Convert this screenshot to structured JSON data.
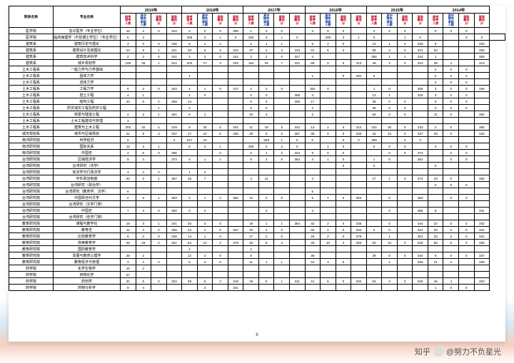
{
  "headers": {
    "dept": "院系名称",
    "major": "专业名称"
  },
  "years": [
    "2019年",
    "2018年",
    "2017年",
    "2016年",
    "2015年",
    "2014年"
  ],
  "subcols": [
    "统考报考人数",
    "其中推免录取人数",
    "录取最低分",
    "录取最低分"
  ],
  "subcol_colors": [
    "#c00020",
    "#003399",
    "#c00020",
    "#c00020"
  ],
  "page": "8",
  "watermark": "@努力不负星光",
  "rows": [
    {
      "dept": "医学院",
      "major": "急诊医学（专业学位）",
      "d": [
        19,
        2,
        0,
        344,
        4,
        0,
        0,
        356,
        1,
        0,
        0,
        "",
        3,
        0,
        0,
        "",
        4,
        0,
        0,
        "",
        0,
        0,
        0,
        ""
      ]
    },
    {
      "dept": "医学院",
      "major": "临床病理学（不授博士学位）（专业学位）",
      "d": [
        5,
        2,
        "",
        "",
        338,
        3,
        1,
        0,
        326,
        3,
        1,
        0,
        "",
        345,
        3,
        1,
        0,
        "",
        1,
        0,
        "",
        "",
        0,
        0,
        ""
      ]
    },
    {
      "dept": "建筑系",
      "major": "建筑历史与理论",
      "d": [
        3,
        0,
        0,
        336,
        5,
        1,
        1,
        "",
        1,
        1,
        1,
        "",
        5,
        2,
        0,
        "",
        10,
        1,
        0,
        339,
        9,
        "",
        "",
        325
      ]
    },
    {
      "dept": "建筑系",
      "major": "建筑设计及其理论",
      "d": [
        24,
        6,
        1,
        311,
        20,
        5,
        4,
        322,
        37,
        4,
        4,
        343,
        31,
        6,
        2,
        "",
        56,
        4,
        0,
        321,
        63,
        "",
        "",
        330
      ]
    },
    {
      "dept": "建筑系",
      "major": "建筑技术科学",
      "d": [
        2,
        2,
        0,
        341,
        1,
        2,
        0,
        341,
        2,
        2,
        0,
        327,
        4,
        "",
        "",
        "",
        355,
        1,
        1,
        334,
        1,
        "",
        "",
        359
      ]
    },
    {
      "dept": "建筑系",
      "major": "城乡规划学",
      "d": [
        109,
        28,
        1,
        312,
        202,
        27,
        3,
        333,
        154,
        25,
        7,
        321,
        88,
        0,
        0,
        313,
        49,
        3,
        0,
        310,
        39,
        4,
        "",
        313
      ]
    },
    {
      "dept": "土木工程系",
      "major": "一般力学与力学基础",
      "d": [
        "",
        "",
        "",
        "",
        "",
        "",
        "",
        "",
        "",
        "",
        "",
        "",
        "",
        "",
        "",
        "",
        "",
        "",
        "",
        "",
        2,
        0,
        0,
        ""
      ]
    },
    {
      "dept": "土木工程系",
      "major": "固体力学",
      "d": [
        "",
        "",
        "",
        "",
        1,
        "",
        "",
        "",
        "",
        "",
        "",
        "",
        1,
        "",
        0,
        391,
        0,
        "",
        "",
        "",
        0,
        0,
        0,
        ""
      ]
    },
    {
      "dept": "土木工程系",
      "major": "流体力学",
      "d": [
        "",
        "",
        "",
        "",
        "",
        "",
        "",
        "",
        "",
        "",
        "",
        "",
        "",
        "",
        "",
        "",
        "",
        "",
        "",
        "",
        2,
        0,
        0,
        ""
      ]
    },
    {
      "dept": "土木工程系",
      "major": "工程力学",
      "d": [
        6,
        3,
        0,
        343,
        4,
        1,
        0,
        317,
        2,
        2,
        0,
        "",
        352,
        0,
        "",
        "",
        1,
        0,
        "",
        365,
        3,
        0,
        0,
        346
      ]
    },
    {
      "dept": "土木工程系",
      "major": "岩土工程",
      "d": [
        4,
        1,
        "",
        "",
        4,
        0,
        "",
        "",
        0,
        0,
        "",
        385,
        4,
        "",
        "",
        "",
        13,
        1,
        "",
        326,
        0,
        0,
        0,
        ""
      ]
    },
    {
      "dept": "土木工程系",
      "major": "结构工程",
      "d": [
        20,
        0,
        2,
        359,
        14,
        "",
        "",
        "",
        0,
        3,
        "",
        365,
        17,
        "",
        "",
        "",
        36,
        0,
        0,
        "",
        0,
        0,
        0,
        ""
      ]
    },
    {
      "dept": "土木工程系",
      "major": "防灾减灾工程及防护工程",
      "d": [
        "",
        "",
        1,
        "",
        2,
        "",
        "",
        "",
        0,
        0,
        "",
        "",
        4,
        "",
        "",
        "",
        36,
        0,
        0,
        "",
        0,
        0,
        0,
        ""
      ]
    },
    {
      "dept": "土木工程系",
      "major": "桥梁与隧道工程",
      "d": [
        2,
        2,
        1,
        361,
        6,
        1,
        "",
        "",
        10,
        3,
        "",
        "",
        3,
        "",
        "",
        "",
        64,
        0,
        0,
        "",
        11,
        0,
        "",
        352
      ]
    },
    {
      "dept": "土木工程系",
      "major": "土木工程建造与管理",
      "d": [
        3,
        "",
        "",
        "",
        "",
        "",
        "",
        "",
        "",
        "",
        "",
        "",
        "",
        "",
        "",
        "",
        "",
        "",
        "",
        "",
        "",
        "",
        "",
        ""
      ]
    },
    {
      "dept": "土木工程系",
      "major": "建筑与土木工程",
      "d": [
        203,
        32,
        4,
        319,
        8,
        35,
        5,
        301,
        11,
        19,
        5,
        342,
        13,
        2,
        0,
        314,
        232,
        26,
        0,
        333,
        2,
        0,
        "",
        355
      ]
    },
    {
      "dept": "城市规划系",
      "major": "城市与区域规划",
      "d": [
        21,
        9,
        3,
        337,
        17,
        10,
        5,
        330,
        29,
        0,
        5,
        357,
        38,
        0,
        0,
        330,
        32,
        10,
        0,
        327,
        29,
        0,
        "",
        333
      ]
    },
    {
      "dept": "南洋研究院",
      "major": "世界经济",
      "d": [
        6,
        "",
        "",
        4,
        317,
        10,
        "",
        "",
        "",
        259,
        1,
        5,
        0,
        "",
        0,
        0,
        350,
        "",
        0,
        0,
        "",
        "",
        "",
        ""
      ]
    },
    {
      "dept": "南洋研究院",
      "major": "国际关系",
      "d": [
        12,
        3,
        1,
        "",
        5,
        2,
        1,
        "",
        380,
        2,
        2,
        0,
        "",
        1,
        0,
        "",
        6,
        0,
        0,
        "",
        3,
        0,
        0,
        ""
      ]
    },
    {
      "dept": "南洋研究院",
      "major": "中国史",
      "d": [
        4,
        6,
        0,
        386,
        "",
        "",
        0,
        "",
        5,
        1,
        2,
        342,
        9,
        0,
        0,
        "",
        "",
        0,
        0,
        373,
        "",
        0,
        0,
        ""
      ]
    },
    {
      "dept": "台湾研究院",
      "major": "区域经济学",
      "d": [
        9,
        4,
        "",
        373,
        4,
        1,
        1,
        "",
        8,
        3,
        0,
        362,
        4,
        1,
        0,
        "",
        1,
        0,
        "",
        362,
        "",
        0,
        0,
        ""
      ]
    },
    {
      "dept": "台湾研究院",
      "major": "台湾研究（法学）",
      "d": [
        "",
        "",
        "",
        "",
        "",
        "",
        "",
        "",
        "",
        "",
        "",
        "",
        "",
        "",
        0,
        "",
        0,
        "",
        "",
        "",
        0,
        "",
        "",
        ""
      ]
    },
    {
      "dept": "台湾研究院",
      "major": "宪法学与行政法学",
      "d": [
        3,
        2,
        0,
        "",
        1,
        2,
        "",
        "",
        "",
        "",
        "",
        "",
        "",
        "",
        "",
        "",
        "",
        "",
        "",
        "",
        "",
        "",
        "",
        ""
      ]
    },
    {
      "dept": "台湾研究院",
      "major": "中外政治制度",
      "d": [
        20,
        0,
        1,
        367,
        15,
        7,
        "",
        "",
        4,
        11,
        "",
        "",
        4,
        "",
        "",
        "",
        17,
        1,
        0,
        374,
        23,
        0,
        "",
        352
      ]
    },
    {
      "dept": "台湾研究院",
      "major": "台湾研究（政治学）",
      "d": [
        "",
        "",
        "",
        "",
        "",
        "",
        "",
        "",
        "",
        "",
        "",
        "",
        "",
        "",
        "",
        "",
        "",
        "",
        "",
        "",
        0,
        0,
        0,
        ""
      ]
    },
    {
      "dept": "台湾研究院",
      "major": "台湾研究（教育学、法学）",
      "d": [
        6,
        "",
        "",
        "",
        "",
        "",
        "",
        "",
        "",
        "",
        "",
        "",
        5,
        "",
        "",
        "",
        "",
        "",
        "",
        "",
        "",
        "",
        "",
        ""
      ]
    },
    {
      "dept": "台湾研究院",
      "major": "中国现当代文学",
      "d": [
        2,
        0,
        1,
        383,
        2,
        1,
        2,
        364,
        12,
        2,
        0,
        "",
        5,
        1,
        0,
        353,
        "",
        0,
        "",
        363,
        "",
        0,
        0,
        ""
      ]
    },
    {
      "dept": "台湾研究院",
      "major": "台湾研究（文学门类）",
      "d": [
        "",
        "",
        "",
        "",
        "",
        "",
        "",
        "",
        "",
        "",
        "",
        "",
        "",
        "",
        "",
        "",
        "",
        "",
        "",
        "",
        "",
        "",
        "",
        ""
      ]
    },
    {
      "dept": "台湾研究院",
      "major": "中国史",
      "d": [
        7,
        4,
        0,
        350,
        0,
        4,
        "",
        "",
        "",
        2,
        "",
        "",
        4,
        "",
        "",
        "",
        "",
        0,
        "",
        356,
        8,
        "",
        "",
        341
      ]
    },
    {
      "dept": "台湾研究院",
      "major": "台湾研究（史学门类）",
      "d": [
        "",
        "",
        "",
        "",
        "",
        "",
        "",
        "",
        "",
        "",
        "",
        "",
        "",
        "",
        "",
        "",
        "",
        "",
        "",
        "",
        "",
        "",
        "",
        ""
      ]
    },
    {
      "dept": "教育研究院",
      "major": "课程与教学论",
      "d": [
        18,
        3,
        1,
        341,
        25,
        3,
        0,
        "",
        18,
        1,
        1,
        364,
        32,
        2,
        0,
        335,
        "",
        0,
        "",
        344,
        22,
        0,
        0,
        332
      ]
    },
    {
      "dept": "教育研究院",
      "major": "教育史",
      "d": [
        11,
        3,
        0,
        335,
        34,
        2,
        0,
        337,
        20,
        2,
        0,
        "",
        25,
        2,
        0,
        334,
        2,
        0,
        "",
        341,
        20,
        0,
        0,
        341
      ]
    },
    {
      "dept": "教育研究院",
      "major": "比较教育学",
      "d": [
        6,
        2,
        0,
        338,
        14,
        1,
        0,
        "",
        17,
        2,
        0,
        "",
        25,
        2,
        0,
        376,
        "",
        1,
        "",
        361,
        33,
        2,
        0,
        331
      ]
    },
    {
      "dept": "教育研究院",
      "major": "高等教育学",
      "d": [
        48,
        15,
        2,
        341,
        54,
        10,
        2,
        379,
        45,
        9,
        4,
        "",
        46,
        10,
        4,
        363,
        50,
        10,
        0,
        345,
        68,
        5,
        0,
        336
      ]
    },
    {
      "dept": "教育研究院",
      "major": "国防教育学",
      "d": [
        "",
        "",
        "",
        "",
        4,
        "",
        "",
        "",
        2,
        "",
        "",
        "",
        "",
        "",
        "",
        "",
        "",
        "",
        "",
        "",
        "",
        "",
        "",
        ""
      ]
    },
    {
      "dept": "教育研究院",
      "major": "发展与教育心理学",
      "d": [
        28,
        2,
        "",
        "",
        12,
        2,
        0,
        "",
        8,
        "",
        "",
        "",
        38,
        "",
        "",
        "",
        39,
        0,
        0,
        344,
        6,
        0,
        0,
        337
      ]
    },
    {
      "dept": "教育研究院",
      "major": "教育经济与管理",
      "d": [
        3,
        4,
        0,
        "",
        5,
        3,
        0,
        "",
        11,
        1,
        1,
        "",
        24,
        3,
        0,
        "",
        "",
        1,
        "",
        335,
        21,
        2,
        "",
        339
      ]
    },
    {
      "dept": "药学院",
      "major": "化学生物学",
      "d": [
        10,
        2,
        "",
        "",
        "",
        "",
        "",
        "",
        "",
        "",
        "",
        "",
        "",
        "",
        "",
        "",
        "",
        "",
        "",
        "",
        "",
        "",
        "",
        ""
      ]
    },
    {
      "dept": "药学院",
      "major": "药物化学",
      "d": [
        57,
        "",
        "",
        "",
        "",
        "",
        "",
        "",
        "",
        "",
        "",
        "",
        "",
        "",
        "",
        "",
        "",
        "",
        "",
        "",
        "",
        "",
        "",
        ""
      ]
    },
    {
      "dept": "药学院",
      "major": "药剂学",
      "d": [
        32,
        6,
        0,
        322,
        39,
        5,
        2,
        319,
        19,
        5,
        1,
        311,
        41,
        6,
        0,
        304,
        54,
        4,
        0,
        315,
        46,
        4,
        "",
        353
      ]
    },
    {
      "dept": "药学院",
      "major": "药物分析学",
      "d": [
        9,
        4,
        "",
        "",
        "",
        2,
        "",
        341,
        "",
        "",
        "",
        "",
        "",
        "",
        "",
        "",
        "",
        "",
        "",
        "",
        1,
        0,
        0,
        ""
      ]
    }
  ]
}
